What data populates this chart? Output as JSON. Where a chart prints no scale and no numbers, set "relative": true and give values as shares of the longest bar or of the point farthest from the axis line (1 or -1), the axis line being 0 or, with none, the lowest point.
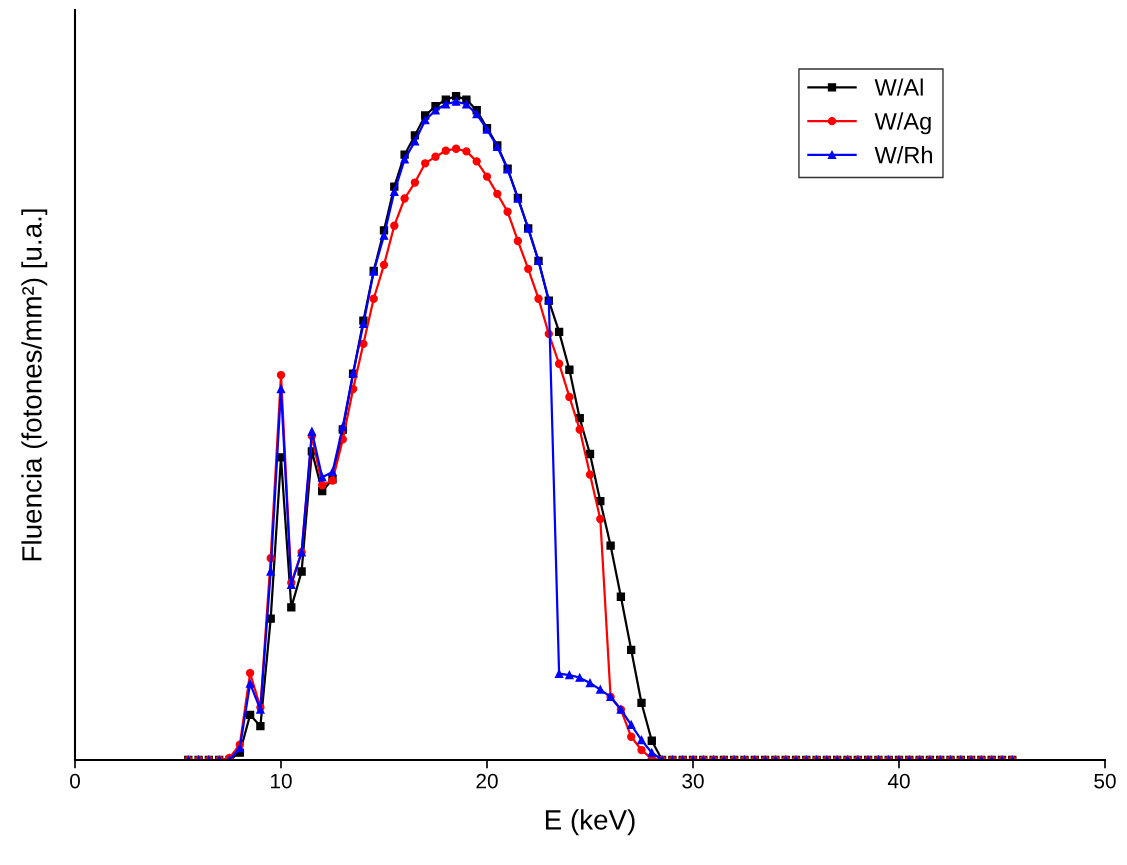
{
  "chart_data": {
    "type": "line",
    "xlabel": "E (keV)",
    "ylabel": "Fluencia (fotones/mm²) [u.a.]",
    "relative": true,
    "x": [
      5.5,
      6,
      6.5,
      7,
      7.5,
      8,
      8.5,
      9,
      9.5,
      10,
      10.5,
      11,
      11.5,
      12,
      12.5,
      13,
      13.5,
      14,
      14.5,
      15,
      15.5,
      16,
      16.5,
      17,
      17.5,
      18,
      18.5,
      19,
      19.5,
      20,
      20.5,
      21,
      21.5,
      22,
      22.5,
      23,
      23.5,
      24,
      24.5,
      25,
      25.5,
      26,
      26.5,
      27,
      27.5,
      28,
      28.5,
      29,
      29.5,
      30,
      30.5,
      31,
      31.5,
      32,
      32.5,
      33,
      33.5,
      34,
      34.5,
      35,
      35.5,
      36,
      36.5,
      37,
      37.5,
      38,
      38.5,
      39,
      39.5,
      40,
      40.5,
      41,
      41.5,
      42,
      42.5,
      43,
      43.5,
      44,
      44.5,
      45,
      45.5
    ],
    "xlim": [
      0,
      50
    ],
    "xticks": [
      0,
      10,
      20,
      30,
      40,
      50
    ],
    "grid": false,
    "legend": "top right",
    "line_style": "solid",
    "series": [
      {
        "name": "W/Al",
        "color": "#000000",
        "marker": "square",
        "values": [
          0,
          0,
          0,
          0,
          0,
          0.011,
          0.068,
          0.051,
          0.213,
          0.456,
          0.23,
          0.284,
          0.465,
          0.405,
          0.423,
          0.498,
          0.582,
          0.662,
          0.737,
          0.798,
          0.864,
          0.912,
          0.941,
          0.971,
          0.985,
          0.995,
          1,
          0.995,
          0.979,
          0.952,
          0.926,
          0.891,
          0.847,
          0.801,
          0.752,
          0.692,
          0.645,
          0.588,
          0.515,
          0.461,
          0.39,
          0.323,
          0.246,
          0.166,
          0.086,
          0.029,
          0,
          0,
          0,
          0,
          0,
          0,
          0,
          0,
          0,
          0,
          0,
          0,
          0,
          0,
          0,
          0,
          0,
          0,
          0,
          0,
          0,
          0,
          0,
          0,
          0,
          0,
          0,
          0,
          0,
          0,
          0,
          0,
          0,
          0,
          0
        ]
      },
      {
        "name": "W/Ag",
        "color": "#ff0000",
        "marker": "circle",
        "values": [
          0,
          0,
          0,
          0,
          0.003,
          0.023,
          0.131,
          0.079,
          0.304,
          0.58,
          0.267,
          0.313,
          0.488,
          0.414,
          0.421,
          0.483,
          0.559,
          0.627,
          0.695,
          0.746,
          0.805,
          0.846,
          0.87,
          0.899,
          0.909,
          0.918,
          0.921,
          0.917,
          0.902,
          0.879,
          0.853,
          0.826,
          0.782,
          0.74,
          0.695,
          0.642,
          0.597,
          0.547,
          0.498,
          0.43,
          0.363,
          0.095,
          0.076,
          0.035,
          0.015,
          0.002,
          0,
          0,
          0,
          0,
          0,
          0,
          0,
          0,
          0,
          0,
          0,
          0,
          0,
          0,
          0,
          0,
          0,
          0,
          0,
          0,
          0,
          0,
          0,
          0,
          0,
          0,
          0,
          0,
          0,
          0,
          0,
          0,
          0,
          0,
          0
        ]
      },
      {
        "name": "W/Rh",
        "color": "#0000ff",
        "marker": "triangle",
        "values": [
          0,
          0,
          0,
          0,
          0,
          0.018,
          0.115,
          0.076,
          0.284,
          0.559,
          0.264,
          0.313,
          0.495,
          0.426,
          0.434,
          0.502,
          0.583,
          0.657,
          0.736,
          0.79,
          0.856,
          0.905,
          0.932,
          0.964,
          0.979,
          0.988,
          0.992,
          0.988,
          0.973,
          0.95,
          0.924,
          0.89,
          0.846,
          0.801,
          0.752,
          0.693,
          0.13,
          0.128,
          0.124,
          0.116,
          0.106,
          0.095,
          0.076,
          0.053,
          0.03,
          0.011,
          0,
          0,
          0,
          0,
          0,
          0,
          0,
          0,
          0,
          0,
          0,
          0,
          0,
          0,
          0,
          0,
          0,
          0,
          0,
          0,
          0,
          0,
          0,
          0,
          0,
          0,
          0,
          0,
          0,
          0,
          0,
          0,
          0,
          0,
          0
        ]
      }
    ]
  }
}
